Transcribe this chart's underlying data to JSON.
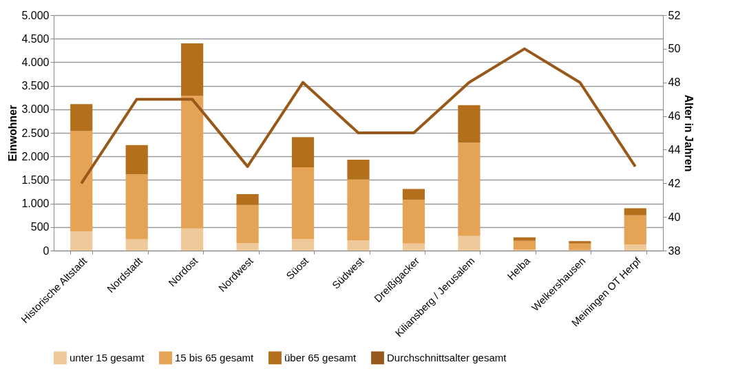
{
  "chart_data": {
    "type": "bar",
    "stacked": true,
    "ylabel": "Einwohner",
    "y2label": "Alter in Jahren",
    "categories": [
      "Historische Altstadt",
      "Nordstadt",
      "Nordost",
      "Nordwest",
      "Süost",
      "Südwest",
      "Dreißigacker",
      "Kiliansberg / Jerusalem",
      "Helba",
      "Welkershausen",
      "Meiningen OT Herpf"
    ],
    "series": [
      {
        "name": "unter 15 gesamt",
        "color": "#f0c99b",
        "values": [
          410,
          240,
          470,
          160,
          250,
          220,
          150,
          310,
          20,
          10,
          130
        ]
      },
      {
        "name": "15 bis 65 gesamt",
        "color": "#e4a355",
        "values": [
          2130,
          1380,
          2820,
          810,
          1520,
          1290,
          930,
          1980,
          190,
          140,
          620
        ]
      },
      {
        "name": "über 65 gesamt",
        "color": "#b36f1c",
        "values": [
          570,
          620,
          1110,
          230,
          640,
          420,
          230,
          800,
          70,
          50,
          150
        ]
      },
      {
        "name": "Durchschnittsalter gesamt",
        "color": "#98581a",
        "type": "line",
        "axis": "y2",
        "values": [
          42,
          47,
          47,
          43,
          48,
          45,
          45,
          48,
          50,
          48,
          43
        ]
      }
    ],
    "ylim": [
      0,
      5000
    ],
    "yticks": [
      {
        "value": 0,
        "label": "0"
      },
      {
        "value": 500,
        "label": "500"
      },
      {
        "value": 1000,
        "label": "1.000"
      },
      {
        "value": 1500,
        "label": "1.500"
      },
      {
        "value": 2000,
        "label": "2.000"
      },
      {
        "value": 2500,
        "label": "2.500"
      },
      {
        "value": 3000,
        "label": "3.000"
      },
      {
        "value": 3500,
        "label": "3.500"
      },
      {
        "value": 4000,
        "label": "4.000"
      },
      {
        "value": 4500,
        "label": "4.500"
      },
      {
        "value": 5000,
        "label": "5.000"
      }
    ],
    "y2lim": [
      38,
      52
    ],
    "y2ticks": [
      38,
      40,
      42,
      44,
      46,
      48,
      50,
      52
    ],
    "grid": "y",
    "legend": "bottom",
    "marker": "none",
    "line_style": "solid"
  }
}
